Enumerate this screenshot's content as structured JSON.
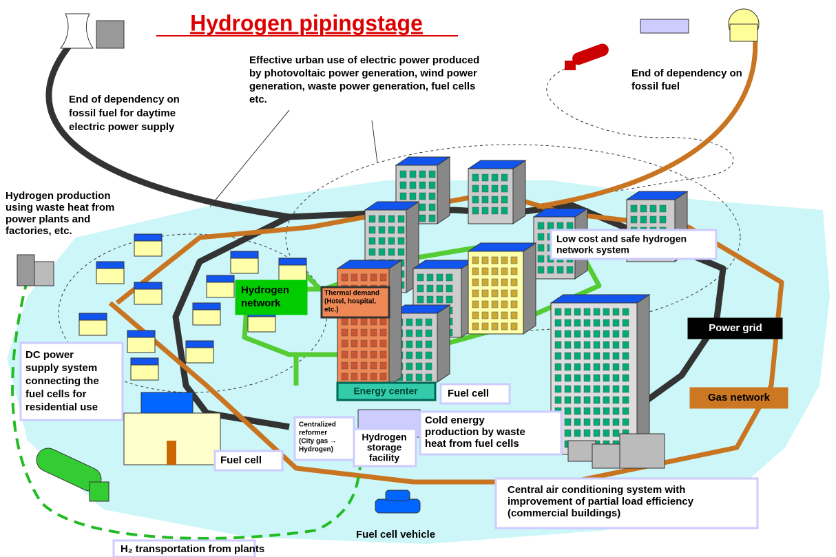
{
  "title": "Hydrogen pipingstage",
  "labels": {
    "effective_use": [
      "Effective urban use of electric power produced",
      "by photovoltaic power generation, wind power",
      "generation, waste power generation, fuel cells",
      "etc."
    ],
    "fossil_daytime": [
      "End of dependency on",
      "fossil fuel for daytime",
      "electric power supply"
    ],
    "fossil_fuel": [
      "End of dependency on",
      "fossil fuel"
    ],
    "waste_heat": [
      "Hydrogen production",
      "using waste heat from",
      "power plants and",
      "factories, etc."
    ],
    "low_cost": [
      "Low cost and safe hydrogen",
      "network system"
    ],
    "hydrogen_network": [
      "Hydrogen",
      "network"
    ],
    "thermal_demand": [
      "Thermal demand",
      "(Hotel, hospital,",
      "etc.)"
    ],
    "power_grid": [
      "Power grid"
    ],
    "gas_network": [
      "Gas network"
    ],
    "dc_power": [
      "DC power",
      "supply system",
      "connecting the",
      "fuel cells for",
      "residential use"
    ],
    "energy_center": [
      "Energy center"
    ],
    "fuel_cell_center": [
      "Fuel cell"
    ],
    "reformer": [
      "Centralized",
      "reformer",
      "(City gas →",
      "Hydrogen)"
    ],
    "storage": [
      "Hydrogen",
      "storage",
      "facility"
    ],
    "cold_energy": [
      "Cold energy",
      "production by waste",
      "heat from fuel cells"
    ],
    "fuel_cell_house": [
      "Fuel cell"
    ],
    "central_ac": [
      "Central air conditioning system with",
      "improvement of partial load efficiency",
      "(commercial buildings)"
    ],
    "vehicle": [
      "Fuel cell vehicle"
    ],
    "h2_transport": [
      "H₂ transportation from plants"
    ]
  }
}
